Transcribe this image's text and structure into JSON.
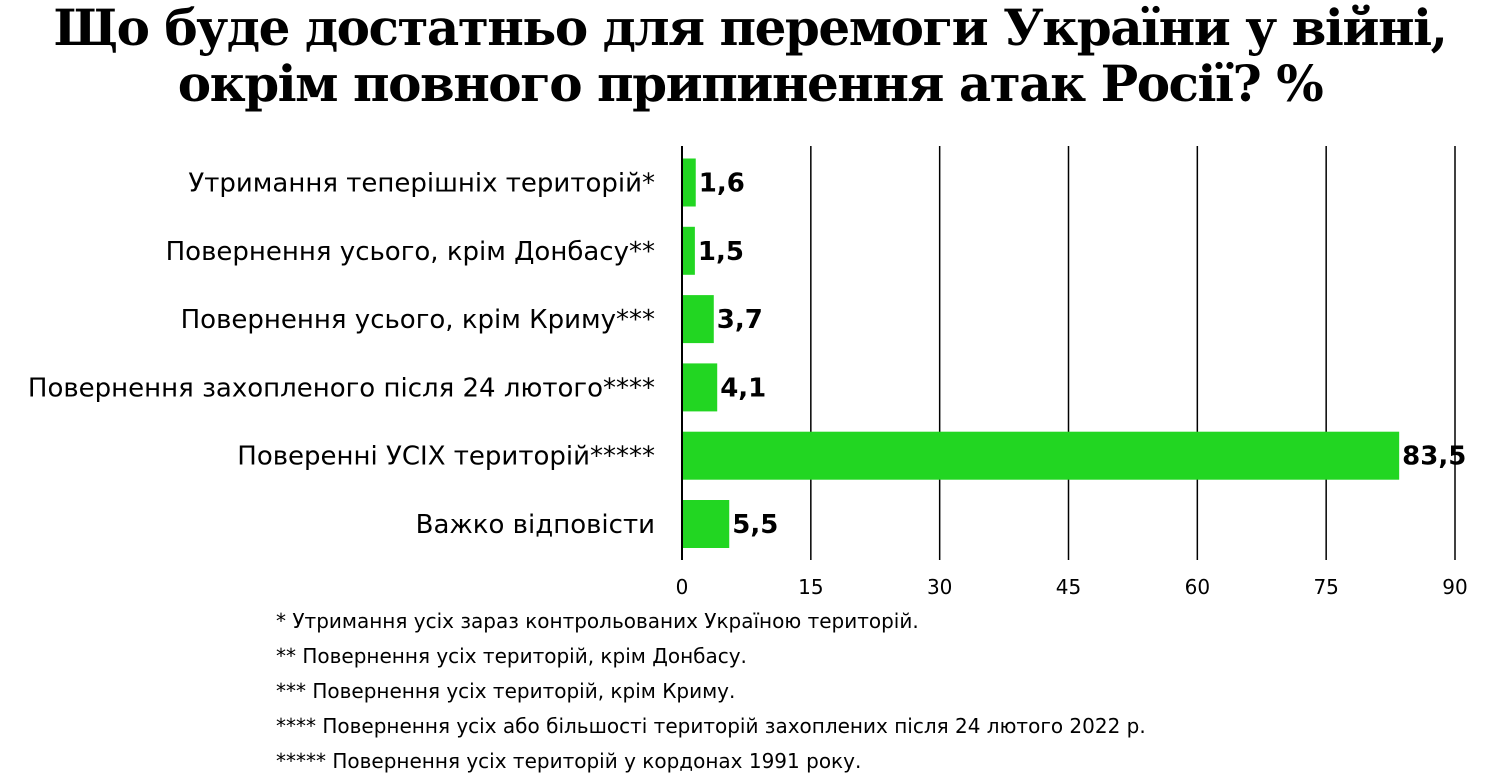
{
  "title": "Що буде достатньо для перемоги України у війні, окрім повного припинення атак Росії? %",
  "chart_data": {
    "type": "bar",
    "orientation": "horizontal",
    "title": "Що буде достатньо для перемоги України у війні, окрім повного припинення атак Росії? %",
    "categories": [
      "Утримання теперішніх територій*",
      "Повернення усього, крім Донбасу**",
      "Повернення усього, крім Криму***",
      "Повернення захопленого після 24 лютого****",
      "Поверенні УСІХ територій*****",
      "Важко відповісти"
    ],
    "values": [
      1.6,
      1.5,
      3.7,
      4.1,
      83.5,
      5.5
    ],
    "value_labels": [
      "1,6",
      "1,5",
      "3,7",
      "4,1",
      "83,5",
      "5,5"
    ],
    "xlim": [
      0,
      90
    ],
    "xticks": [
      0,
      15,
      30,
      45,
      60,
      75,
      90
    ],
    "grid": true,
    "bar_color": "#22d622",
    "grid_color": "#000000"
  },
  "footnotes": [
    "* Утримання усіх зараз контрольованих Україною територій.",
    "** Повернення усіх територій, крім Донбасу.",
    "*** Повернення усіх територій, крім Криму.",
    "**** Повернення усіх або більшості територій захоплених після 24 лютого 2022 р.",
    "***** Повернення усіх територій у кордонах 1991 року."
  ]
}
